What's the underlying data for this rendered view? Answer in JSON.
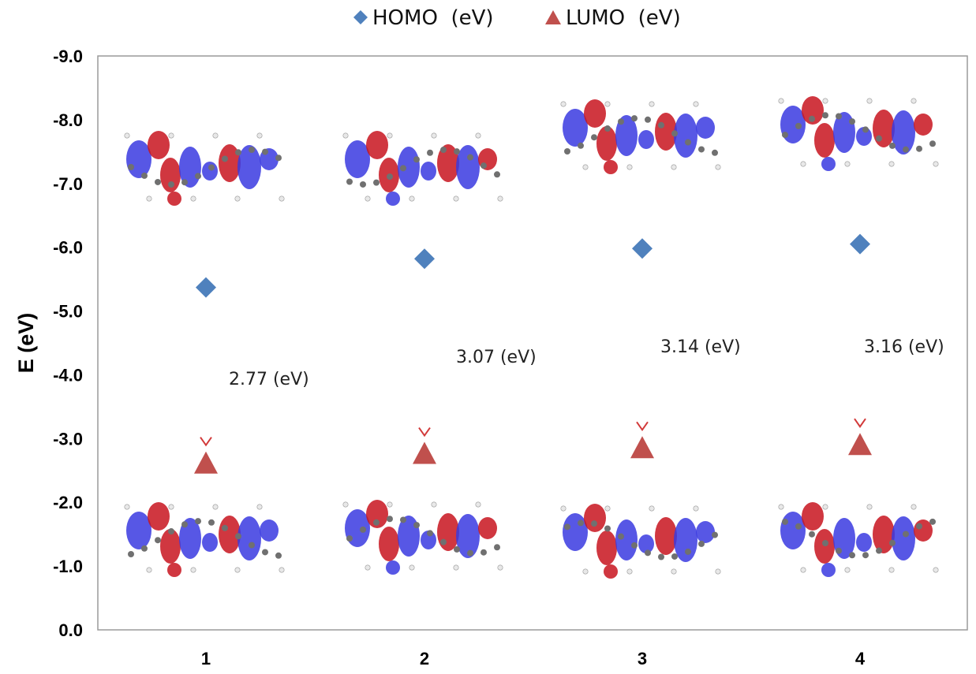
{
  "chart_data": {
    "type": "scatter",
    "ylabel": "E (eV)",
    "ylim": [
      0,
      -9
    ],
    "y_ticks": [
      "-9.0",
      "-8.0",
      "-7.0",
      "-6.0",
      "-5.0",
      "-4.0",
      "-3.0",
      "-2.0",
      "-1.0",
      "0.0"
    ],
    "y_tick_values": [
      -9,
      -8,
      -7,
      -6,
      -5,
      -4,
      -3,
      -2,
      -1,
      0
    ],
    "categories": [
      "1",
      "2",
      "3",
      "4"
    ],
    "legend": {
      "placement": "top-center"
    },
    "series": [
      {
        "name": "HOMO  (eV)",
        "marker": "diamond",
        "color": "#4f81bd",
        "values": [
          -5.37,
          -5.82,
          -5.98,
          -6.05
        ]
      },
      {
        "name": "LUMO  (eV)",
        "marker": "triangle",
        "color": "#c0504d",
        "values": [
          -2.6,
          -2.75,
          -2.84,
          -2.89
        ]
      }
    ],
    "gap_labels": [
      "2.77 (eV)",
      "3.07 (eV)",
      "3.14 (eV)",
      "3.16 (eV)"
    ],
    "grid": false,
    "orbital_images": "HOMO/LUMO orbital isosurface renderings shown above and below each molecule"
  }
}
